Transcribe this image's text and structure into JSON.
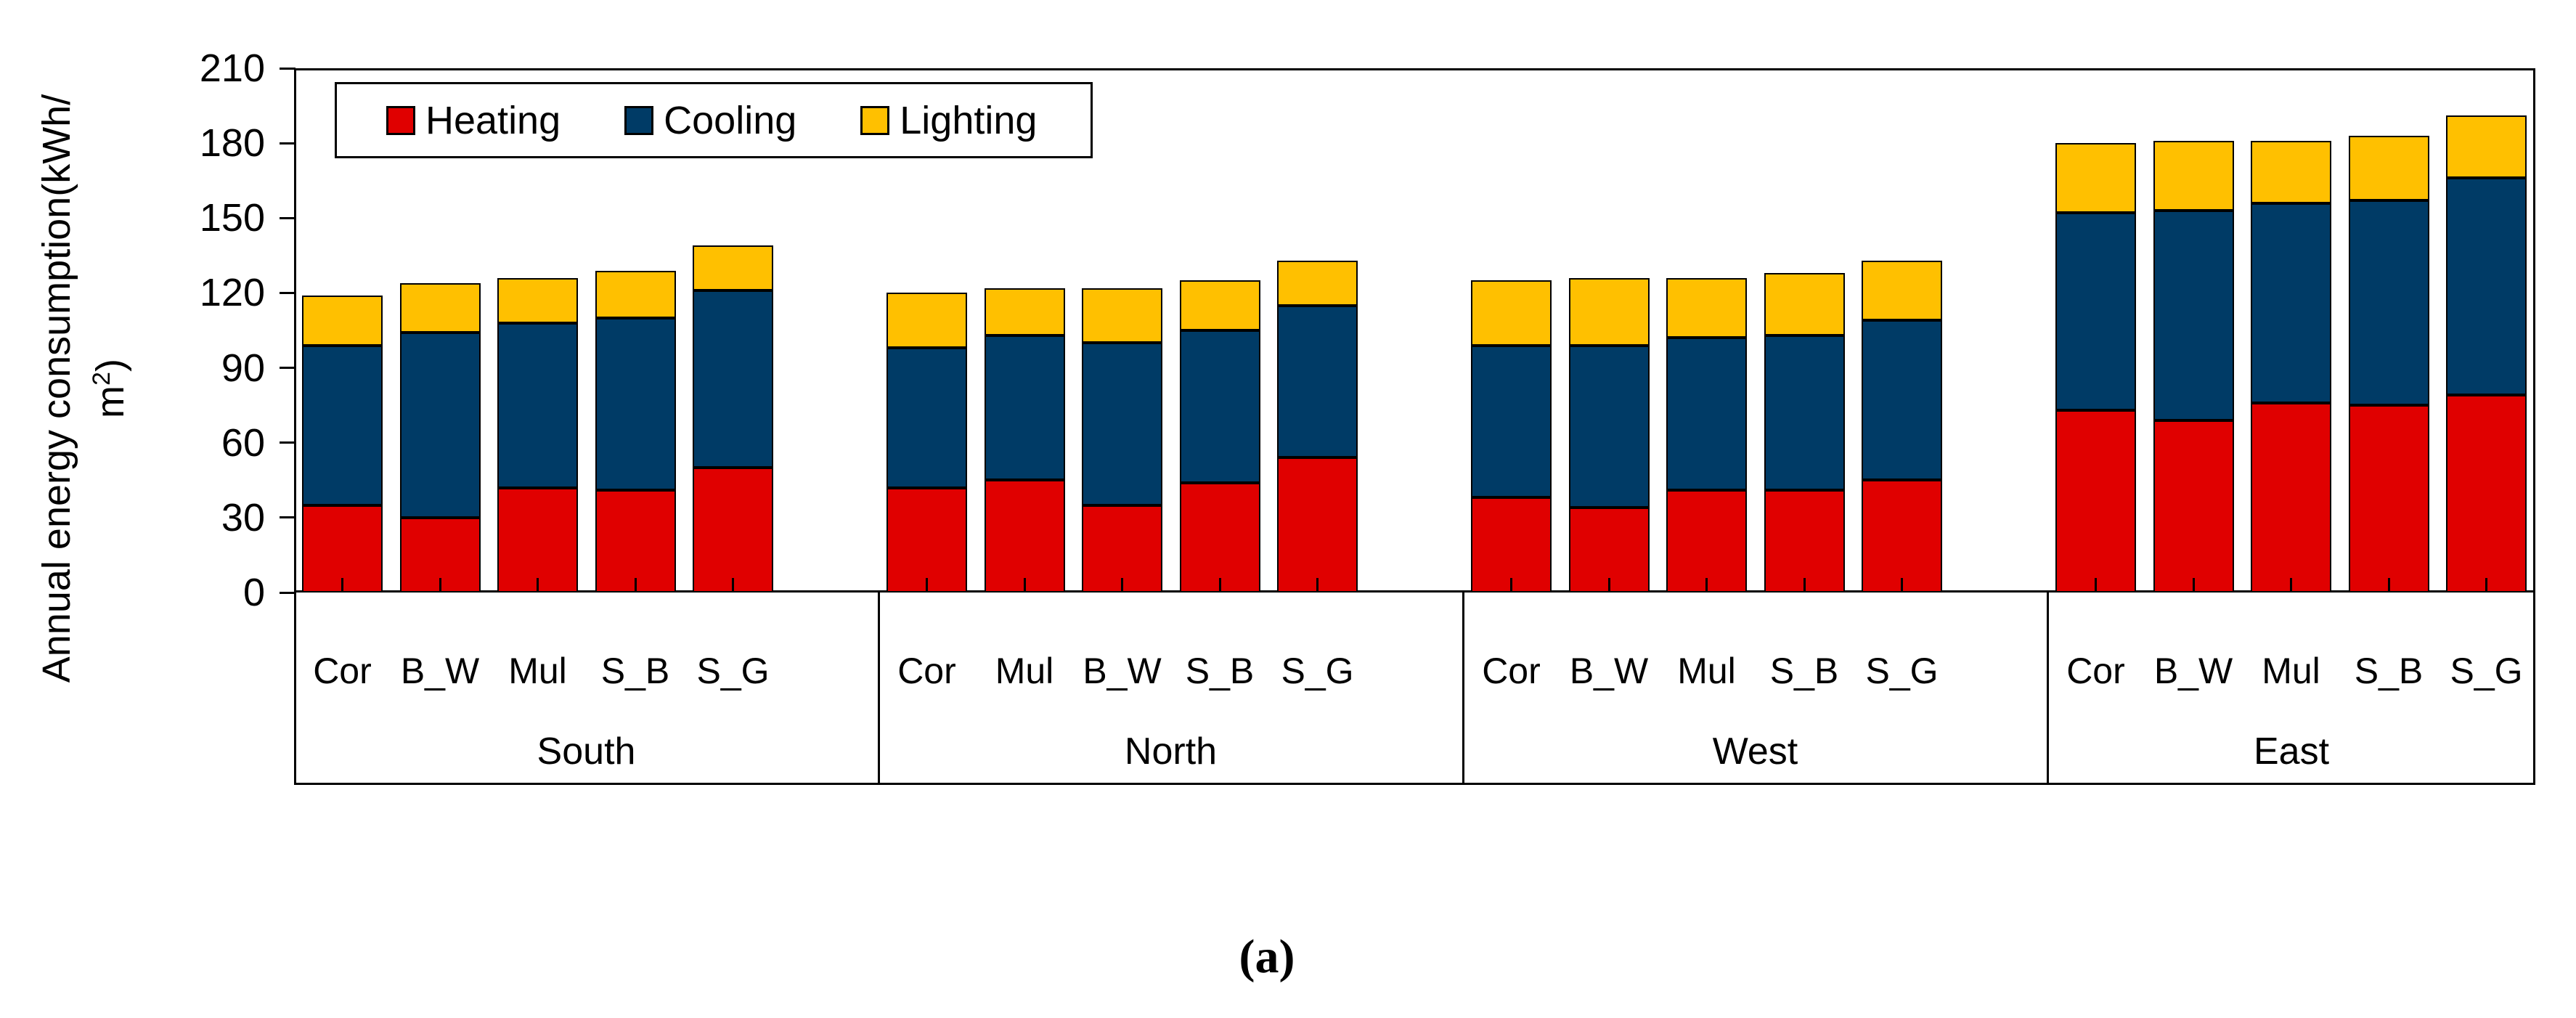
{
  "figure": {
    "y_axis": {
      "title_line1": "Annual energy consumption(kWh/",
      "title_line2_base": "m",
      "title_line2_sup": "2",
      "title_line2_close": ")",
      "tick_labels": [
        210,
        180,
        150,
        120,
        90,
        60,
        30,
        0
      ]
    },
    "legend": [
      {
        "label": "Heating",
        "color": "#e00000"
      },
      {
        "label": "Cooling",
        "color": "#003b66"
      },
      {
        "label": "Lighting",
        "color": "#ffc000"
      }
    ],
    "caption": "(a)"
  },
  "chart_data": {
    "type": "bar",
    "stacked": true,
    "ylabel": "Annual energy consumption(kWh/m2)",
    "ylim": [
      0,
      210
    ],
    "ytick_step": 30,
    "grid": false,
    "legend_position": "top-left-inside",
    "series_names": [
      "Heating",
      "Cooling",
      "Lighting"
    ],
    "series_colors": [
      "#e00000",
      "#003b66",
      "#ffc000"
    ],
    "groups": [
      {
        "name": "South",
        "categories": [
          "Cor",
          "B_W",
          "Mul",
          "S_B",
          "S_G"
        ],
        "series": [
          {
            "name": "Heating",
            "values": [
              35,
              30,
              42,
              41,
              50
            ]
          },
          {
            "name": "Cooling",
            "values": [
              64,
              74,
              66,
              69,
              71
            ]
          },
          {
            "name": "Lighting",
            "values": [
              20,
              20,
              18,
              19,
              18
            ]
          }
        ],
        "totals": [
          119,
          124,
          126,
          129,
          139
        ]
      },
      {
        "name": "North",
        "categories": [
          "Cor",
          "Mul",
          "B_W",
          "S_B",
          "S_G"
        ],
        "series": [
          {
            "name": "Heating",
            "values": [
              42,
              45,
              35,
              44,
              54
            ]
          },
          {
            "name": "Cooling",
            "values": [
              56,
              58,
              65,
              61,
              61
            ]
          },
          {
            "name": "Lighting",
            "values": [
              22,
              19,
              22,
              20,
              18
            ]
          }
        ],
        "totals": [
          120,
          122,
          122,
          125,
          133
        ]
      },
      {
        "name": "West",
        "categories": [
          "Cor",
          "B_W",
          "Mul",
          "S_B",
          "S_G"
        ],
        "series": [
          {
            "name": "Heating",
            "values": [
              38,
              34,
              41,
              41,
              45
            ]
          },
          {
            "name": "Cooling",
            "values": [
              61,
              65,
              61,
              62,
              64
            ]
          },
          {
            "name": "Lighting",
            "values": [
              26,
              27,
              24,
              25,
              24
            ]
          }
        ],
        "totals": [
          125,
          126,
          126,
          128,
          133
        ]
      },
      {
        "name": "East",
        "categories": [
          "Cor",
          "B_W",
          "Mul",
          "S_B",
          "S_G"
        ],
        "series": [
          {
            "name": "Heating",
            "values": [
              73,
              69,
              76,
              75,
              79
            ]
          },
          {
            "name": "Cooling",
            "values": [
              79,
              84,
              80,
              82,
              87
            ]
          },
          {
            "name": "Lighting",
            "values": [
              28,
              28,
              25,
              26,
              25
            ]
          }
        ],
        "totals": [
          180,
          181,
          181,
          183,
          191
        ]
      }
    ]
  }
}
